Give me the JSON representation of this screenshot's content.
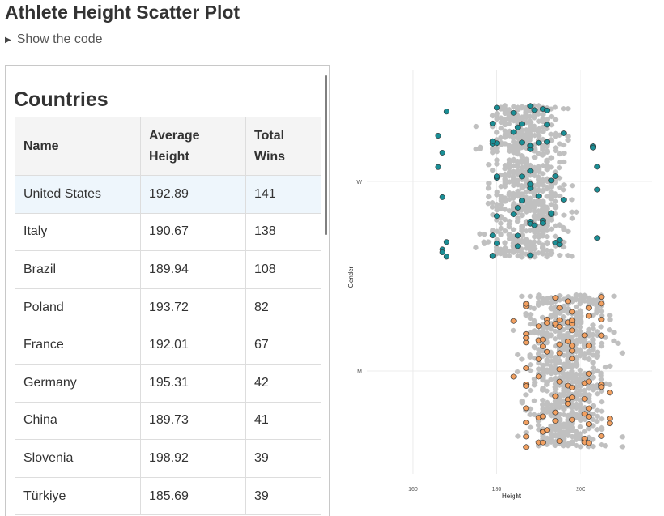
{
  "page": {
    "title": "Athlete Height Scatter Plot",
    "code_toggle_label": "Show the code"
  },
  "table": {
    "title": "Countries",
    "headers": {
      "name": "Name",
      "avg_height": "Average Height",
      "total_wins": "Total Wins"
    },
    "rows": [
      {
        "name": "United States",
        "avg_height": "192.89",
        "total_wins": "141"
      },
      {
        "name": "Italy",
        "avg_height": "190.67",
        "total_wins": "138"
      },
      {
        "name": "Brazil",
        "avg_height": "189.94",
        "total_wins": "108"
      },
      {
        "name": "Poland",
        "avg_height": "193.72",
        "total_wins": "82"
      },
      {
        "name": "France",
        "avg_height": "192.01",
        "total_wins": "67"
      },
      {
        "name": "Germany",
        "avg_height": "195.31",
        "total_wins": "42"
      },
      {
        "name": "China",
        "avg_height": "189.73",
        "total_wins": "41"
      },
      {
        "name": "Slovenia",
        "avg_height": "198.92",
        "total_wins": "39"
      },
      {
        "name": "Türkiye",
        "avg_height": "185.69",
        "total_wins": "39"
      }
    ],
    "highlight_color": "#eef6fc"
  },
  "chart_data": {
    "type": "scatter",
    "title": "",
    "xlabel": "Height",
    "ylabel": "Gender",
    "x_ticks": [
      "160",
      "180",
      "200"
    ],
    "y_categories": [
      "W",
      "M"
    ],
    "xlim": [
      149,
      217
    ],
    "grid": true,
    "colors": {
      "background": "#c0c0c0",
      "W": "#1a8f96",
      "M": "#f2a060",
      "stroke": "#333333"
    },
    "series": [
      {
        "category": "W",
        "highlighted": true,
        "x": [
          167,
          167,
          167,
          168,
          168,
          168,
          166,
          166,
          167,
          179,
          179,
          179,
          180,
          180,
          180,
          179,
          179,
          180,
          179,
          180,
          180,
          184,
          184,
          185,
          185,
          185,
          184,
          185,
          186,
          186,
          186,
          186,
          188,
          188,
          188,
          188,
          188,
          188,
          188,
          188,
          188,
          189,
          189,
          190,
          190,
          191,
          191,
          191,
          192,
          192,
          192,
          193,
          193,
          193,
          194,
          194,
          195,
          195,
          196,
          196,
          203,
          203,
          204,
          204,
          204
        ]
      },
      {
        "category": "M",
        "highlighted": true,
        "x": [
          184,
          184,
          187,
          187,
          187,
          187,
          187,
          187,
          187,
          187,
          187,
          187,
          187,
          187,
          190,
          190,
          190,
          190,
          190,
          190,
          191,
          191,
          191,
          191,
          191,
          191,
          192,
          192,
          192,
          192,
          194,
          194,
          194,
          194,
          194,
          194,
          195,
          195,
          195,
          195,
          195,
          195,
          195,
          195,
          197,
          197,
          197,
          197,
          197,
          197,
          198,
          198,
          198,
          198,
          198,
          198,
          198,
          198,
          198,
          198,
          201,
          201,
          201,
          201,
          201,
          201,
          201,
          202,
          202,
          202,
          202,
          202,
          202,
          202,
          202,
          202,
          205,
          205,
          205,
          205,
          205,
          205,
          205,
          207,
          207,
          207
        ]
      }
    ]
  }
}
